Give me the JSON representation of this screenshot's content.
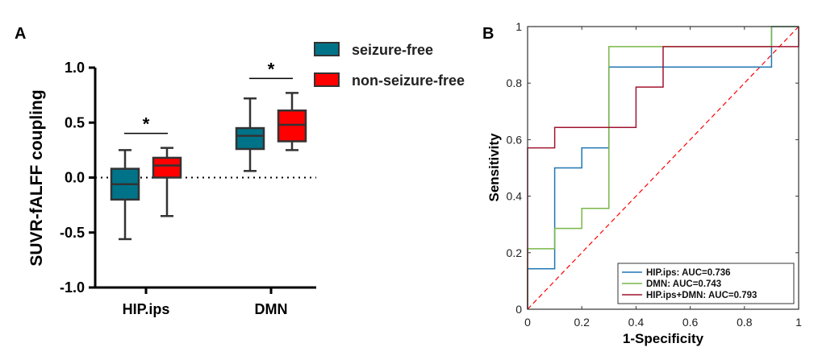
{
  "chart_data": [
    {
      "type": "box",
      "panel_label": "A",
      "ylabel": "SUVR-fALFF coupling",
      "ylim": [
        -1.0,
        1.0
      ],
      "yticks": [
        {
          "value": -1.0,
          "label": "-1.0"
        },
        {
          "value": -0.5,
          "label": "-0.5"
        },
        {
          "value": 0.0,
          "label": "0.0"
        },
        {
          "value": 0.5,
          "label": "0.5"
        },
        {
          "value": 1.0,
          "label": "1.0"
        }
      ],
      "categories": [
        "HIP.ips",
        "DMN"
      ],
      "reference_line": 0,
      "series": [
        {
          "name": "seizure-free",
          "color": "#007388",
          "boxes": [
            {
              "min": -0.56,
              "q1": -0.2,
              "median": -0.06,
              "q3": 0.08,
              "max": 0.25
            },
            {
              "min": 0.06,
              "q1": 0.26,
              "median": 0.38,
              "q3": 0.45,
              "max": 0.72
            }
          ]
        },
        {
          "name": "non-seizure-free",
          "color": "#ff0000",
          "boxes": [
            {
              "min": -0.35,
              "q1": 0.0,
              "median": 0.11,
              "q3": 0.18,
              "max": 0.27
            },
            {
              "min": 0.25,
              "q1": 0.33,
              "median": 0.48,
              "q3": 0.61,
              "max": 0.77
            }
          ]
        }
      ],
      "significance": [
        {
          "category": "HIP.ips",
          "label": "*"
        },
        {
          "category": "DMN",
          "label": "*"
        }
      ]
    },
    {
      "type": "line",
      "panel_label": "B",
      "xlabel": "1-Specificity",
      "ylabel": "Sensitivity",
      "xlim": [
        0,
        1
      ],
      "ylim": [
        0,
        1
      ],
      "xticks": [
        {
          "value": 0,
          "label": "0"
        },
        {
          "value": 0.2,
          "label": "0.2"
        },
        {
          "value": 0.4,
          "label": "0.4"
        },
        {
          "value": 0.6,
          "label": "0.6"
        },
        {
          "value": 0.8,
          "label": "0.8"
        },
        {
          "value": 1,
          "label": "1"
        }
      ],
      "yticks": [
        {
          "value": 0,
          "label": "0"
        },
        {
          "value": 0.2,
          "label": "0.2"
        },
        {
          "value": 0.4,
          "label": "0.4"
        },
        {
          "value": 0.6,
          "label": "0.6"
        },
        {
          "value": 0.8,
          "label": "0.8"
        },
        {
          "value": 1,
          "label": "1"
        }
      ],
      "legend_position": "bottom-right",
      "diagonal_color": "#ff0000",
      "series": [
        {
          "name": "HIP.ips: AUC=0.736",
          "color": "#1f77b4",
          "x": [
            0,
            0,
            0.1,
            0.1,
            0.2,
            0.2,
            0.3,
            0.3,
            0.9,
            0.9,
            1
          ],
          "y": [
            0,
            0.143,
            0.143,
            0.5,
            0.5,
            0.571,
            0.571,
            0.857,
            0.857,
            1,
            1
          ]
        },
        {
          "name": "DMN: AUC=0.743",
          "color": "#7ab648",
          "x": [
            0,
            0,
            0.1,
            0.1,
            0.2,
            0.2,
            0.3,
            0.3,
            0.9,
            0.9,
            1
          ],
          "y": [
            0,
            0.214,
            0.214,
            0.286,
            0.286,
            0.357,
            0.357,
            0.929,
            0.929,
            1,
            1
          ]
        },
        {
          "name": "HIP.ips+DMN: AUC=0.793",
          "color": "#a2142f",
          "x": [
            0,
            0,
            0.1,
            0.1,
            0.4,
            0.4,
            0.5,
            0.5,
            1,
            1
          ],
          "y": [
            0,
            0.571,
            0.571,
            0.643,
            0.643,
            0.786,
            0.786,
            0.929,
            0.929,
            1
          ]
        }
      ]
    }
  ]
}
